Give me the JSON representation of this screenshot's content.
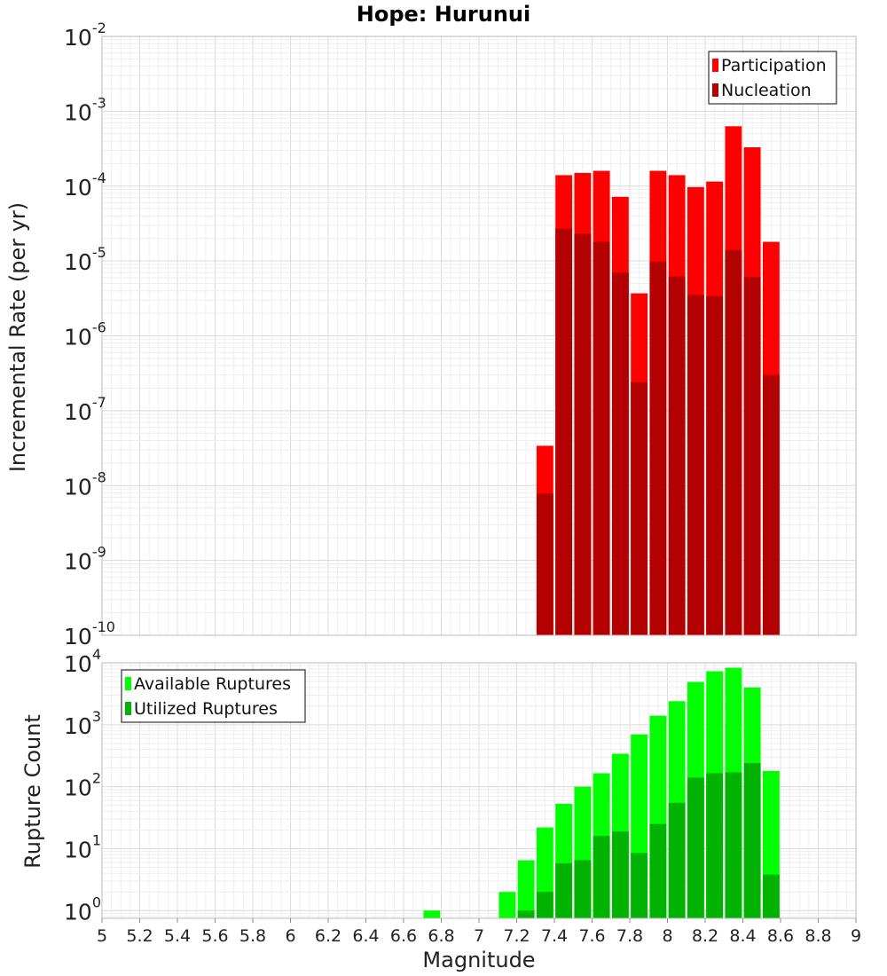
{
  "chart_data": [
    {
      "type": "bar",
      "title": "Hope: Hurunui",
      "ylabel": "Incremental Rate (per yr)",
      "yscale": "log",
      "ylim": [
        1e-10,
        0.01
      ],
      "xlim": [
        5,
        9
      ],
      "grid": true,
      "legend_position": "top-right",
      "bar_width": 0.1,
      "y_ticks": [
        {
          "base": "10",
          "exp": "-10"
        },
        {
          "base": "10",
          "exp": "-9"
        },
        {
          "base": "10",
          "exp": "-8"
        },
        {
          "base": "10",
          "exp": "-7"
        },
        {
          "base": "10",
          "exp": "-6"
        },
        {
          "base": "10",
          "exp": "-5"
        },
        {
          "base": "10",
          "exp": "-4"
        },
        {
          "base": "10",
          "exp": "-3"
        },
        {
          "base": "10",
          "exp": "-2"
        }
      ],
      "x": [
        7.35,
        7.45,
        7.55,
        7.65,
        7.75,
        7.85,
        7.95,
        8.05,
        8.15,
        8.25,
        8.35,
        8.45,
        8.55
      ],
      "series": [
        {
          "name": "Participation",
          "color": "#ff0000",
          "values": [
            3.4e-08,
            0.00014,
            0.00015,
            0.00016,
            7.2e-05,
            3.7e-06,
            0.00016,
            0.00014,
            9.7e-05,
            0.000115,
            0.00063,
            0.00033,
            1.8e-05
          ]
        },
        {
          "name": "Nucleation",
          "color": "#b30000",
          "values": [
            7.8e-09,
            2.7e-05,
            2.3e-05,
            1.8e-05,
            7e-06,
            2.4e-07,
            9.8e-06,
            6.2e-06,
            3.5e-06,
            3.4e-06,
            1.4e-05,
            6.1e-06,
            3e-07
          ]
        }
      ]
    },
    {
      "type": "bar",
      "xlabel": "Magnitude",
      "ylabel": "Rupture Count",
      "yscale": "log",
      "ylim": [
        0.75,
        10000
      ],
      "xlim": [
        5,
        9
      ],
      "grid": true,
      "legend_position": "top-left",
      "bar_width": 0.1,
      "y_ticks": [
        {
          "base": "10",
          "exp": "0"
        },
        {
          "base": "10",
          "exp": "1"
        },
        {
          "base": "10",
          "exp": "2"
        },
        {
          "base": "10",
          "exp": "3"
        },
        {
          "base": "10",
          "exp": "4"
        }
      ],
      "x_ticks": [
        "5",
        "5.2",
        "5.4",
        "5.6",
        "5.8",
        "6",
        "6.2",
        "6.4",
        "6.6",
        "6.8",
        "7",
        "7.2",
        "7.4",
        "7.6",
        "7.8",
        "8",
        "8.2",
        "8.4",
        "8.6",
        "8.8",
        "9"
      ],
      "x": [
        6.75,
        6.85,
        6.95,
        7.05,
        7.15,
        7.25,
        7.35,
        7.45,
        7.55,
        7.65,
        7.75,
        7.85,
        7.95,
        8.05,
        8.15,
        8.25,
        8.35,
        8.45,
        8.55
      ],
      "series": [
        {
          "name": "Available Ruptures",
          "color": "#00ff00",
          "values": [
            1,
            0,
            0,
            0,
            2,
            6.5,
            22,
            53,
            100,
            165,
            340,
            700,
            1400,
            2400,
            4900,
            7300,
            8300,
            4000,
            180
          ]
        },
        {
          "name": "Utilized Ruptures",
          "color": "#00b300",
          "values": [
            0,
            0,
            0,
            0,
            0,
            1,
            2,
            5.8,
            6.5,
            16,
            19,
            8.5,
            25,
            55,
            140,
            165,
            170,
            240,
            3.8
          ]
        }
      ]
    }
  ]
}
